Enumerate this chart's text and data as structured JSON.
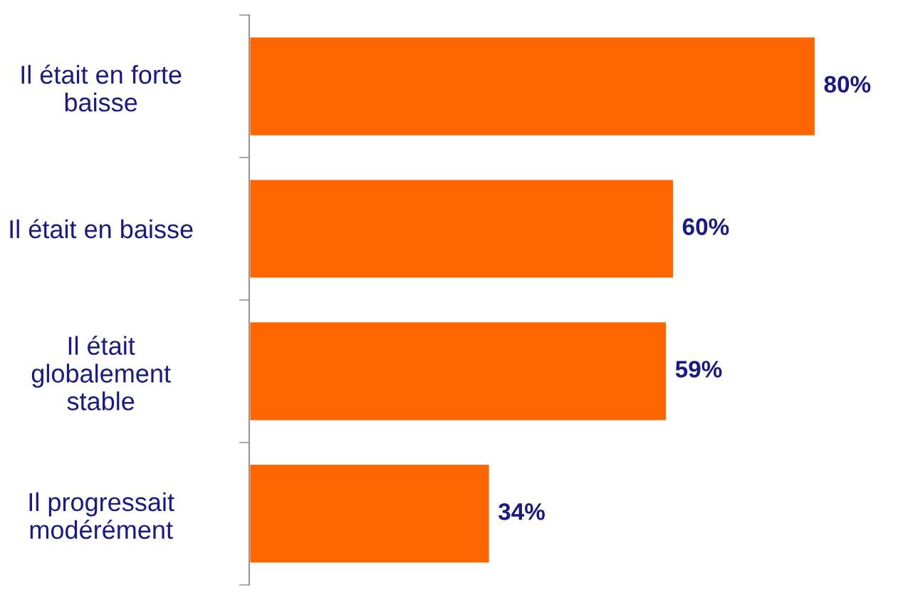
{
  "chart_data": {
    "type": "bar",
    "orientation": "horizontal",
    "categories": [
      "Il était en forte\nbaisse",
      "Il était en baisse",
      "Il était\nglobalement\nstable",
      "Il progressait\nmodérément"
    ],
    "values": [
      80,
      60,
      59,
      34
    ],
    "color": "#ff6600",
    "value_labels": [
      "80%",
      "60%",
      "59%",
      "34%"
    ],
    "tick_labels": "y",
    "grid": false,
    "legend": false
  }
}
